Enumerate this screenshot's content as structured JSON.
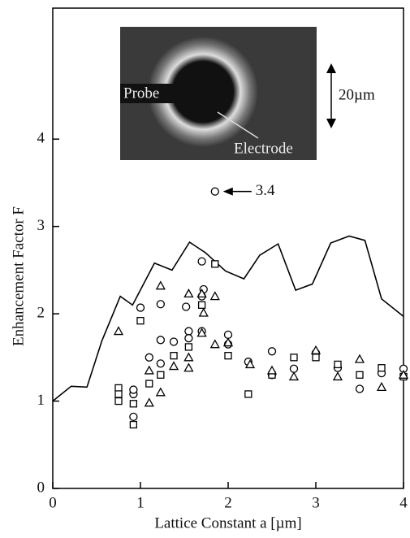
{
  "chart_data": {
    "type": "scatter",
    "xlabel": "Lattice Constant a [µm]",
    "ylabel": "Enhancement Factor F",
    "xlim": [
      0,
      4
    ],
    "ylim": [
      0,
      5.5
    ],
    "xticks": [
      0,
      1,
      2,
      3,
      4
    ],
    "yticks": [
      0,
      1,
      2,
      3,
      4
    ],
    "color": "#000000",
    "line": {
      "x": [
        0,
        0.21,
        0.39,
        0.56,
        0.77,
        0.91,
        1.16,
        1.36,
        1.56,
        1.74,
        1.97,
        2.18,
        2.36,
        2.57,
        2.77,
        2.96,
        3.17,
        3.38,
        3.56,
        3.75,
        4
      ],
      "values": [
        1.0,
        1.17,
        1.16,
        1.69,
        2.2,
        2.1,
        2.58,
        2.5,
        2.82,
        2.7,
        2.49,
        2.4,
        2.67,
        2.8,
        2.27,
        2.34,
        2.81,
        2.89,
        2.84,
        2.17,
        1.97
      ]
    },
    "series": [
      {
        "marker": "circle",
        "x": [
          1.85,
          1.0,
          1.1,
          0.92,
          0.92,
          0.92,
          1.23,
          1.23,
          1.23,
          1.38,
          1.52,
          1.55,
          1.55,
          1.7,
          1.72,
          1.7,
          1.7,
          2.0,
          2.0,
          2.23,
          2.5,
          2.5,
          2.75,
          3.0,
          3.25,
          3.5,
          3.75,
          4.0
        ],
        "values": [
          3.4,
          2.07,
          1.5,
          0.82,
          1.08,
          1.13,
          2.11,
          1.7,
          1.43,
          1.68,
          2.08,
          1.8,
          1.72,
          2.6,
          2.28,
          2.2,
          1.8,
          1.76,
          1.65,
          1.45,
          1.57,
          1.3,
          1.37,
          1.55,
          1.38,
          1.14,
          1.32,
          1.37
        ]
      },
      {
        "marker": "square",
        "x": [
          0.75,
          0.75,
          0.75,
          0.92,
          0.92,
          1.0,
          1.1,
          1.23,
          1.38,
          1.55,
          1.7,
          1.85,
          2.0,
          2.23,
          2.5,
          2.75,
          3.0,
          3.25,
          3.5,
          3.75,
          4.0
        ],
        "values": [
          1.15,
          1.08,
          1.0,
          0.73,
          0.97,
          1.92,
          1.2,
          1.3,
          1.52,
          1.62,
          2.1,
          2.57,
          1.52,
          1.08,
          1.3,
          1.5,
          1.5,
          1.42,
          1.3,
          1.38,
          1.28
        ]
      },
      {
        "marker": "triangle",
        "x": [
          0.75,
          1.1,
          1.1,
          1.23,
          1.23,
          1.38,
          1.55,
          1.55,
          1.55,
          1.7,
          1.72,
          1.7,
          1.85,
          1.85,
          2.0,
          2.25,
          2.5,
          2.75,
          3.0,
          3.25,
          3.5,
          3.75,
          4.0
        ],
        "values": [
          1.8,
          0.98,
          1.35,
          2.32,
          1.1,
          1.4,
          2.23,
          1.5,
          1.38,
          2.23,
          2.01,
          1.78,
          2.2,
          1.65,
          1.67,
          1.42,
          1.35,
          1.28,
          1.58,
          1.28,
          1.48,
          1.16,
          1.3
        ]
      }
    ],
    "annotation": {
      "value": 3.4,
      "label": "3.4"
    },
    "inset": {
      "probe": "Probe",
      "electrode": "Electrode",
      "scale": "20µm"
    }
  }
}
